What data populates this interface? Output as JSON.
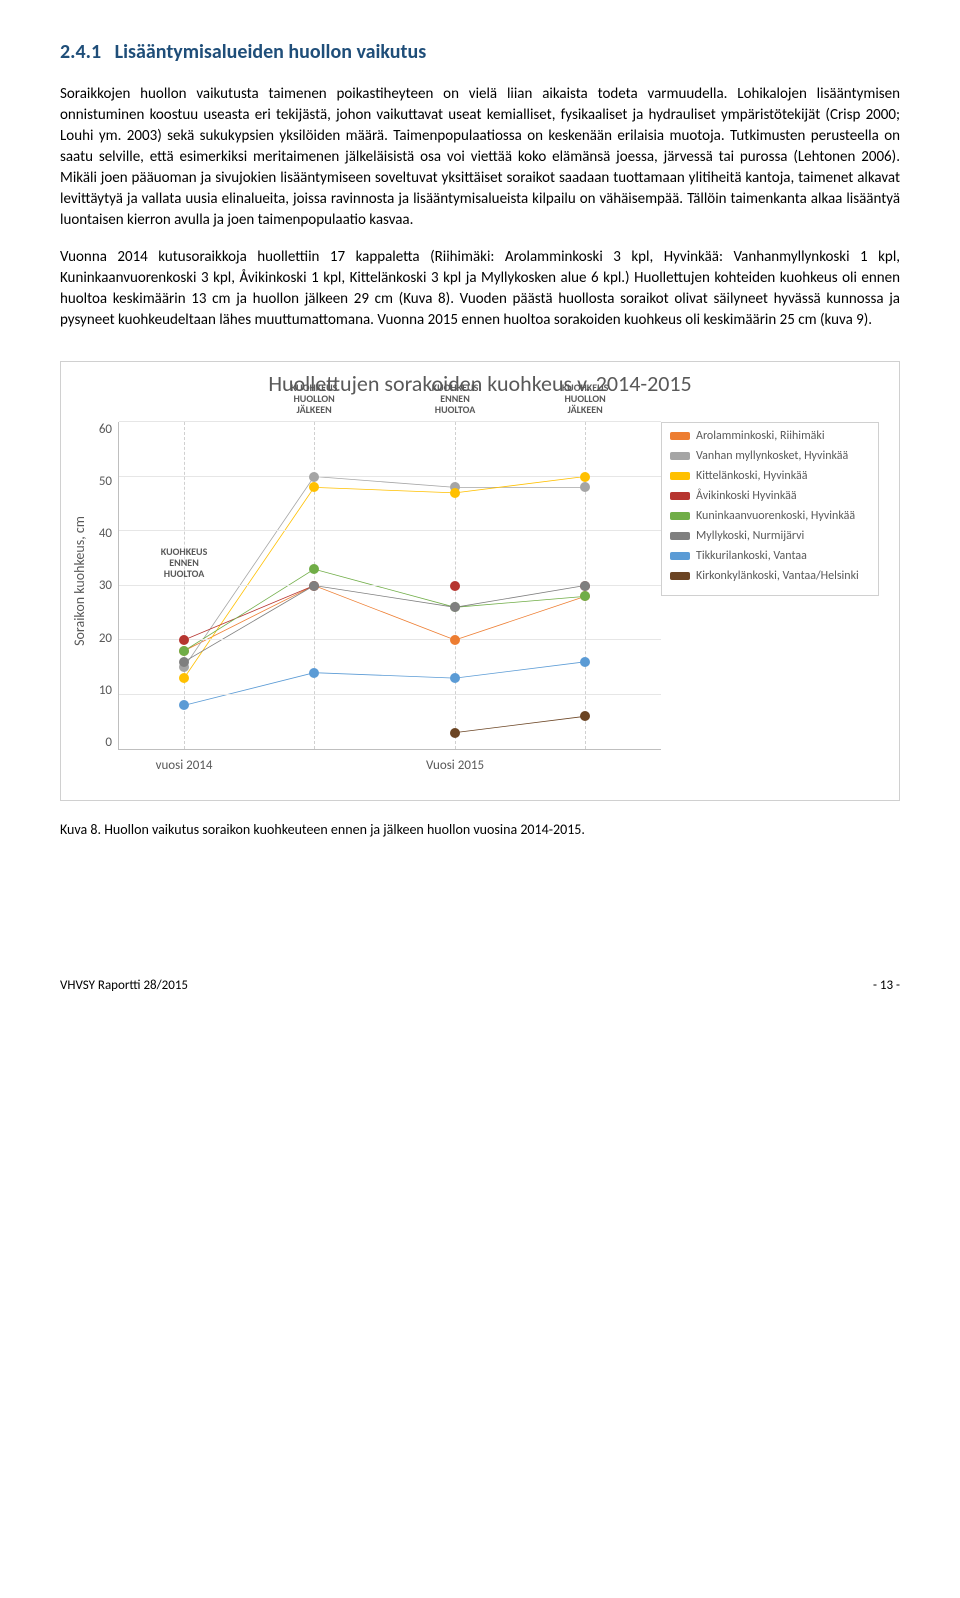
{
  "section": {
    "number": "2.4.1",
    "title": "Lisääntymisalueiden huollon vaikutus"
  },
  "paragraphs": {
    "p1": "Soraikkojen huollon vaikutusta taimenen poikastiheyteen on vielä liian aikaista todeta varmuudella. Lohikalojen lisääntymisen onnistuminen koostuu useasta eri tekijästä, johon vaikuttavat useat kemialliset, fysikaaliset ja hydrauliset ympäristötekijät (Crisp 2000; Louhi ym. 2003) sekä sukukypsien yksilöiden määrä. Taimenpopulaatiossa on keskenään erilaisia muotoja. Tutkimusten perusteella on saatu selville, että esimerkiksi meritaimenen jälkeläisistä osa voi viettää koko elämänsä joessa, järvessä tai purossa (Lehtonen 2006). Mikäli joen pääuoman ja sivujokien lisääntymiseen soveltuvat yksittäiset soraikot saadaan tuottamaan ylitiheitä kantoja, taimenet alkavat levittäytyä ja vallata uusia elinalueita, joissa ravinnosta ja lisääntymisalueista kilpailu on vähäisempää. Tällöin taimenkanta alkaa lisääntyä luontaisen kierron avulla ja joen taimenpopulaatio kasvaa.",
    "p2": "Vuonna 2014 kutusoraikkoja huollettiin 17 kappaletta (Riihimäki: Arolamminkoski 3 kpl, Hyvinkää: Vanhanmyllynkoski 1 kpl, Kuninkaanvuorenkoski 3 kpl, Åvikinkoski 1 kpl, Kittelänkoski 3 kpl ja Myllykosken alue 6 kpl.) Huollettujen kohteiden kuohkeus oli ennen huoltoa keskimäärin 13 cm ja huollon jälkeen 29 cm (Kuva 8). Vuoden päästä huollosta soraikot olivat säilyneet hyvässä kunnossa ja pysyneet kuohkeudeltaan lähes muuttumattomana. Vuonna 2015 ennen huoltoa sorakoiden kuohkeus oli keskimäärin 25 cm (kuva 9)."
  },
  "chart": {
    "title": "Huollettujen sorakoiden kuohkeus v. 2014-2015",
    "y_label": "Soraikon kuohkeus, cm",
    "ylim": [
      0,
      60
    ],
    "ytick_step": 10,
    "yticks": [
      "60",
      "50",
      "40",
      "30",
      "20",
      "10",
      "0"
    ],
    "x_categories": [
      "vuosi 2014",
      "Vuosi 2015"
    ],
    "x_positions_pct": [
      12,
      36,
      62,
      86
    ],
    "annotations": {
      "a0": "KUOHKEUS\nENNEN\nHUOLTOA",
      "a1": "KUOHKEUS\nHUOLLON\nJÄLKEEN",
      "a2": "KUOHKEUS\nENNEN\nHUOLTOA",
      "a3": "KUOHKEUS\nHUOLLON\nJÄLKEEN"
    },
    "series": [
      {
        "label": "Arolamminkoski, Riihimäki",
        "color": "#ed7d31",
        "values": [
          18,
          30,
          20,
          28
        ]
      },
      {
        "label": "Vanhan myllynkosket, Hyvinkää",
        "color": "#a5a5a5",
        "values": [
          15,
          50,
          48,
          48
        ]
      },
      {
        "label": "Kittelänkoski, Hyvinkää",
        "color": "#ffc000",
        "values": [
          13,
          48,
          47,
          50
        ]
      },
      {
        "label": "Åvikinkoski Hyvinkää",
        "color": "#b63530",
        "values": [
          20,
          30,
          30,
          30
        ]
      },
      {
        "label": "Kuninkaanvuorenkoski, Hyvinkää",
        "color": "#70ad47",
        "values": [
          18,
          33,
          26,
          28
        ]
      },
      {
        "label": "Myllykoski, Nurmijärvi",
        "color": "#7f7f7f",
        "values": [
          16,
          30,
          26,
          30
        ]
      },
      {
        "label": "Tikkurilankoski, Vantaa",
        "color": "#5b9bd5",
        "values": [
          8,
          14,
          13,
          16
        ]
      },
      {
        "label": "Kirkonkylänkoski, Vantaa/Helsinki",
        "color": "#6b4423",
        "values": [
          null,
          null,
          3,
          6
        ]
      }
    ],
    "background_color": "#ffffff",
    "grid_color": "#e6e6e6"
  },
  "caption": "Kuva 8. Huollon vaikutus soraikon kuohkeuteen ennen ja jälkeen huollon vuosina 2014-2015.",
  "footer": {
    "left": "VHVSY  Raportti 28/2015",
    "right": "- 13 -"
  }
}
